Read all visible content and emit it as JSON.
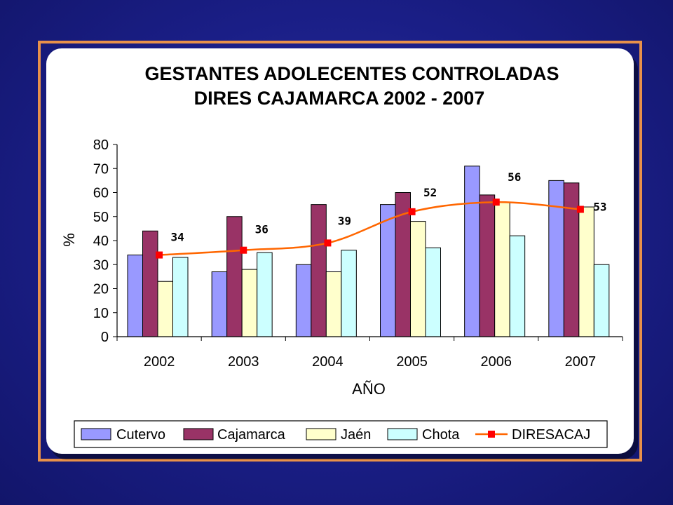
{
  "chart_data": {
    "type": "bar",
    "title": [
      "GESTANTES ADOLECENTES CONTROLADAS",
      "DIRES CAJAMARCA  2002 - 2007"
    ],
    "xlabel": "AÑO",
    "ylabel": "%",
    "ylim": [
      0,
      80
    ],
    "yticks": [
      "0",
      "10",
      "20",
      "30",
      "40",
      "50",
      "60",
      "70",
      "80"
    ],
    "categories": [
      "2002",
      "2003",
      "2004",
      "2005",
      "2006",
      "2007"
    ],
    "series": [
      {
        "name": "Cutervo",
        "type": "bar",
        "color": "#9999ff",
        "values": [
          34,
          27,
          30,
          55,
          71,
          65
        ]
      },
      {
        "name": "Cajamarca",
        "type": "bar",
        "color": "#993366",
        "values": [
          44,
          50,
          55,
          60,
          59,
          64
        ]
      },
      {
        "name": "Jaén",
        "type": "bar",
        "color": "#ffffcc",
        "values": [
          23,
          28,
          27,
          48,
          56,
          54
        ]
      },
      {
        "name": "Chota",
        "type": "bar",
        "color": "#ccffff",
        "values": [
          33,
          35,
          36,
          37,
          42,
          30
        ]
      },
      {
        "name": "DIRESACAJ",
        "type": "line",
        "color": "#ff0000",
        "line_color": "#ff6600",
        "values": [
          34,
          36,
          39,
          52,
          56,
          53
        ],
        "labels": [
          "34",
          "36",
          "39",
          "52",
          "56",
          "53"
        ]
      }
    ],
    "legend": "bottom",
    "grid": false
  }
}
